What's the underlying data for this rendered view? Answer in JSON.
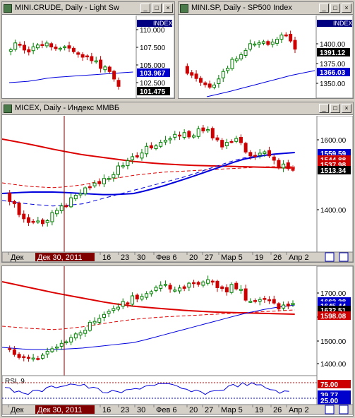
{
  "windows": {
    "crude": {
      "title": "MINI.CRUDE, Daily - Light Sw",
      "index_label": "INDEX",
      "y_ticks": [
        "110.000",
        "107.500",
        "105.000",
        "102.500"
      ],
      "badges": [
        {
          "text": "103.967",
          "color": "#0000cc"
        },
        {
          "text": "101.475",
          "color": "#000000"
        }
      ]
    },
    "sp": {
      "title": "MINI.SP, Daily - SP500 Index",
      "index_label": "INDEX",
      "y_ticks": [
        "1400.00",
        "1375.00",
        "1350.00"
      ],
      "badges": [
        {
          "text": "1391.12",
          "color": "#000000"
        },
        {
          "text": "1366.03",
          "color": "#0000cc"
        }
      ]
    },
    "micex": {
      "title": "MICEX, Daily - Индекс ММВБ",
      "y_ticks": [
        "1600.00",
        "1400.00"
      ],
      "badges": [
        {
          "text": "1559.59",
          "color": "#0000cc"
        },
        {
          "text": "1544.88",
          "color": "#cc0000"
        },
        {
          "text": "1537.98",
          "color": "#cc0000"
        },
        {
          "text": "1513.34",
          "color": "#000000"
        }
      ],
      "x_labels": [
        "Дек",
        "Дек 30, 2011",
        "16",
        "23",
        "30",
        "Фев 6",
        "20",
        "27",
        "Мар 5",
        "19",
        "26",
        "Апр 2"
      ]
    },
    "lower": {
      "y_ticks": [
        "1700.00",
        "1600.00",
        "1500.00",
        "1400.00"
      ],
      "badges": [
        {
          "text": "1663.38",
          "color": "#0000cc"
        },
        {
          "text": "1645.44",
          "color": "#0000cc"
        },
        {
          "text": "1632.51",
          "color": "#000000"
        },
        {
          "text": "1598.08",
          "color": "#cc0000"
        }
      ],
      "rsi_label": "RSI, 9",
      "rsi_badges": [
        {
          "text": "75.00",
          "color": "#cc0000"
        },
        {
          "text": "39.77",
          "color": "#0000cc"
        },
        {
          "text": "25.00",
          "color": "#0000cc"
        }
      ],
      "x_labels": [
        "Дек",
        "Дек 30, 2011",
        "16",
        "23",
        "30",
        "Фев 6",
        "20",
        "27",
        "Мар 5",
        "19",
        "26",
        "Апр 2"
      ]
    }
  },
  "colors": {
    "up": "#008000",
    "down": "#cc0000",
    "ma_red": "#dd0000",
    "ma_blue": "#0000dd",
    "highlight": "#800000"
  }
}
